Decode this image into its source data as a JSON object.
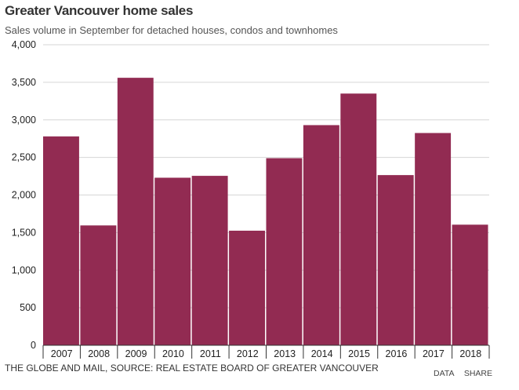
{
  "chart_data": {
    "type": "bar",
    "title": "Greater Vancouver home sales",
    "subtitle": "Sales volume in September for detached houses, condos and townhomes",
    "categories": [
      "2007",
      "2008",
      "2009",
      "2010",
      "2011",
      "2012",
      "2013",
      "2014",
      "2015",
      "2016",
      "2017",
      "2018"
    ],
    "values": [
      2780,
      1595,
      3560,
      2230,
      2255,
      1525,
      2490,
      2930,
      3350,
      2265,
      2825,
      1605
    ],
    "ylim": [
      0,
      4000
    ],
    "yticks": [
      0,
      500,
      1000,
      1500,
      2000,
      2500,
      3000,
      3500,
      4000
    ],
    "ytick_labels": [
      "0",
      "500",
      "1,000",
      "1,500",
      "2,000",
      "2,500",
      "3,000",
      "3,500",
      "4,000"
    ],
    "grid": true,
    "bar_color": "#922b52"
  },
  "footer": {
    "source": "THE GLOBE AND MAIL, SOURCE: REAL ESTATE BOARD OF GREATER VANCOUVER",
    "data_link": "DATA",
    "share_link": "SHARE"
  }
}
